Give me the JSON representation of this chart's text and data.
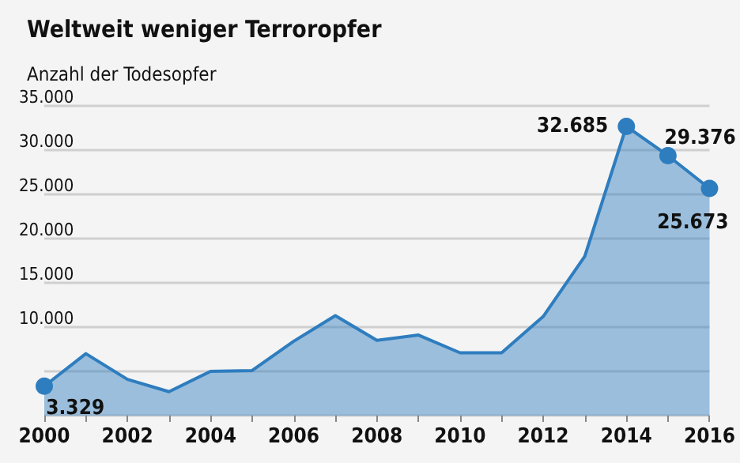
{
  "chart_data": {
    "type": "area",
    "title": "Weltweit weniger Terroropfer",
    "ylabel": "Anzahl der Todesopfer",
    "x": [
      2000,
      2001,
      2002,
      2003,
      2004,
      2005,
      2006,
      2007,
      2008,
      2009,
      2010,
      2011,
      2012,
      2013,
      2014,
      2015,
      2016
    ],
    "series": [
      {
        "color": "#2e7dbf",
        "values": [
          3329,
          7000,
          4100,
          2700,
          5000,
          5100,
          8400,
          11300,
          8500,
          9100,
          7100,
          7100,
          11200,
          18000,
          32685,
          29376,
          25673
        ],
        "value_labels": [
          "3.329",
          null,
          null,
          null,
          null,
          null,
          null,
          null,
          null,
          null,
          null,
          null,
          null,
          null,
          "32.685",
          "29.376",
          "25.673"
        ]
      }
    ],
    "xlim": [
      2000,
      2016
    ],
    "xticks": [
      2000,
      2002,
      2004,
      2006,
      2008,
      2010,
      2012,
      2014,
      2016
    ],
    "ylim": [
      0,
      35000
    ],
    "yticks": [
      {
        "value": 0,
        "label": null
      },
      {
        "value": 5000,
        "label": null
      },
      {
        "value": 10000,
        "label": "10.000"
      },
      {
        "value": 15000,
        "label": "15.000"
      },
      {
        "value": 20000,
        "label": "20.000"
      },
      {
        "value": 25000,
        "label": "25.000"
      },
      {
        "value": 30000,
        "label": "30.000"
      },
      {
        "value": 35000,
        "label": "35.000"
      }
    ],
    "grid": "y"
  }
}
